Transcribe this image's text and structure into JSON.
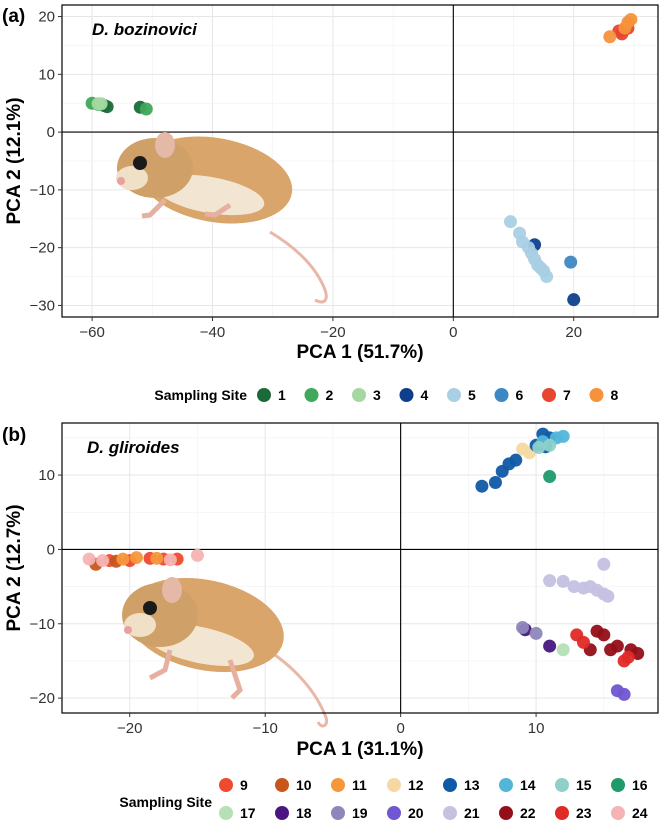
{
  "chart_data": [
    {
      "type": "scatter",
      "panel_label": "(a)",
      "species": "D. bozinovici",
      "xlabel": "PCA 1 (51.7%)",
      "ylabel": "PCA 2 (12.1%)",
      "xlim": [
        -65,
        34
      ],
      "ylim": [
        -32,
        22
      ],
      "x_ticks": [
        -60,
        -40,
        -20,
        0,
        20
      ],
      "y_ticks": [
        -30,
        -20,
        -10,
        0,
        10,
        20
      ],
      "grid": true,
      "legend_position": "bottom",
      "legend_title": "Sampling Site",
      "series": [
        {
          "name": "1",
          "color": "#1b6b3a",
          "points": [
            [
              -58,
              4.6
            ],
            [
              -52,
              4.3
            ],
            [
              -57.5,
              4.4
            ]
          ]
        },
        {
          "name": "2",
          "color": "#3fa85a",
          "points": [
            [
              -60,
              5
            ],
            [
              -51,
              4
            ],
            [
              -59,
              4.8
            ]
          ]
        },
        {
          "name": "3",
          "color": "#a4d8a0",
          "points": [
            [
              -59,
              4.9
            ],
            [
              -58.5,
              4.9
            ]
          ]
        },
        {
          "name": "4",
          "color": "#0f3f8c",
          "points": [
            [
              13.5,
              -19.5
            ],
            [
              20,
              -29
            ]
          ]
        },
        {
          "name": "5",
          "color": "#a9cfe4",
          "points": [
            [
              9.5,
              -15.5
            ],
            [
              11,
              -17.5
            ],
            [
              11.5,
              -19
            ],
            [
              12.5,
              -20
            ],
            [
              13,
              -21
            ],
            [
              13.5,
              -22
            ],
            [
              14,
              -23
            ],
            [
              14.5,
              -23.5
            ],
            [
              15,
              -24
            ],
            [
              15.5,
              -25
            ]
          ]
        },
        {
          "name": "6",
          "color": "#3d88c4",
          "points": [
            [
              19.5,
              -22.5
            ]
          ]
        },
        {
          "name": "7",
          "color": "#e8452f",
          "points": [
            [
              27.5,
              17.5
            ],
            [
              28,
              17
            ],
            [
              29,
              18
            ],
            [
              28.5,
              17.8
            ]
          ]
        },
        {
          "name": "8",
          "color": "#f5923a",
          "points": [
            [
              26,
              16.5
            ],
            [
              28.5,
              18
            ],
            [
              29,
              19
            ],
            [
              29.5,
              19.5
            ]
          ]
        }
      ]
    },
    {
      "type": "scatter",
      "panel_label": "(b)",
      "species": "D. gliroides",
      "xlabel": "PCA 1 (31.1%)",
      "ylabel": "PCA 2 (12.7%)",
      "xlim": [
        -25,
        19
      ],
      "ylim": [
        -22,
        17
      ],
      "x_ticks": [
        -20,
        -10,
        0,
        10
      ],
      "y_ticks": [
        -20,
        -10,
        0,
        10
      ],
      "grid": true,
      "legend_position": "bottom",
      "legend_title": "Sampling Site",
      "series": [
        {
          "name": "9",
          "color": "#ef4a2f",
          "points": [
            [
              -21.5,
              -1.5
            ],
            [
              -20,
              -1.5
            ],
            [
              -18.5,
              -1.2
            ],
            [
              -17.5,
              -1.3
            ],
            [
              -16.5,
              -1.3
            ]
          ]
        },
        {
          "name": "10",
          "color": "#c8561b",
          "points": [
            [
              -22.5,
              -2
            ],
            [
              -21,
              -1.6
            ]
          ]
        },
        {
          "name": "11",
          "color": "#f5973b",
          "points": [
            [
              -20.5,
              -1.3
            ],
            [
              -19.5,
              -1.1
            ],
            [
              -18,
              -1.2
            ]
          ]
        },
        {
          "name": "12",
          "color": "#f6d9a2",
          "points": [
            [
              9,
              13.5
            ],
            [
              9.5,
              13
            ]
          ]
        },
        {
          "name": "13",
          "color": "#105aa6",
          "points": [
            [
              6,
              8.5
            ],
            [
              7,
              9
            ],
            [
              7.5,
              10.5
            ],
            [
              8,
              11.5
            ],
            [
              8.5,
              12
            ],
            [
              10,
              14
            ],
            [
              10.5,
              15.5
            ],
            [
              11,
              15
            ],
            [
              10.7,
              13.8
            ]
          ]
        },
        {
          "name": "14",
          "color": "#52b6d9",
          "points": [
            [
              10.5,
              14.5
            ],
            [
              11.5,
              15
            ],
            [
              12,
              15.2
            ]
          ]
        },
        {
          "name": "15",
          "color": "#8fd1c9",
          "points": [
            [
              10.2,
              13.7
            ],
            [
              11,
              14
            ]
          ]
        },
        {
          "name": "16",
          "color": "#1f9a6a",
          "points": [
            [
              11,
              9.8
            ]
          ]
        },
        {
          "name": "17",
          "color": "#b6e0b6",
          "points": [
            [
              12,
              -13.5
            ]
          ]
        },
        {
          "name": "18",
          "color": "#49177f",
          "points": [
            [
              9.2,
              -10.8
            ],
            [
              11,
              -13
            ]
          ]
        },
        {
          "name": "19",
          "color": "#8f87ba",
          "points": [
            [
              9,
              -10.5
            ],
            [
              10,
              -11.3
            ]
          ]
        },
        {
          "name": "20",
          "color": "#7056d1",
          "points": [
            [
              16,
              -19
            ],
            [
              16.5,
              -19.5
            ]
          ]
        },
        {
          "name": "21",
          "color": "#c4c1e1",
          "points": [
            [
              11,
              -4.2
            ],
            [
              12,
              -4.3
            ],
            [
              12.8,
              -5
            ],
            [
              13.5,
              -5.2
            ],
            [
              14,
              -5
            ],
            [
              14.5,
              -5.5
            ],
            [
              15,
              -6
            ],
            [
              15.3,
              -6.3
            ],
            [
              15,
              -2
            ]
          ]
        },
        {
          "name": "22",
          "color": "#940f18",
          "points": [
            [
              14.5,
              -11
            ],
            [
              15,
              -11.5
            ],
            [
              15.5,
              -13.5
            ],
            [
              17,
              -13.5
            ],
            [
              17.5,
              -14
            ],
            [
              16,
              -13
            ],
            [
              14,
              -13.5
            ]
          ]
        },
        {
          "name": "23",
          "color": "#e02a26",
          "points": [
            [
              13,
              -11.5
            ],
            [
              13.5,
              -12.5
            ],
            [
              16.5,
              -15
            ],
            [
              16.8,
              -14.5
            ]
          ]
        },
        {
          "name": "24",
          "color": "#f5b3b3",
          "points": [
            [
              -23,
              -1.3
            ],
            [
              -22,
              -1.5
            ],
            [
              -17,
              -1.4
            ],
            [
              -15,
              -0.8
            ]
          ]
        }
      ]
    }
  ]
}
